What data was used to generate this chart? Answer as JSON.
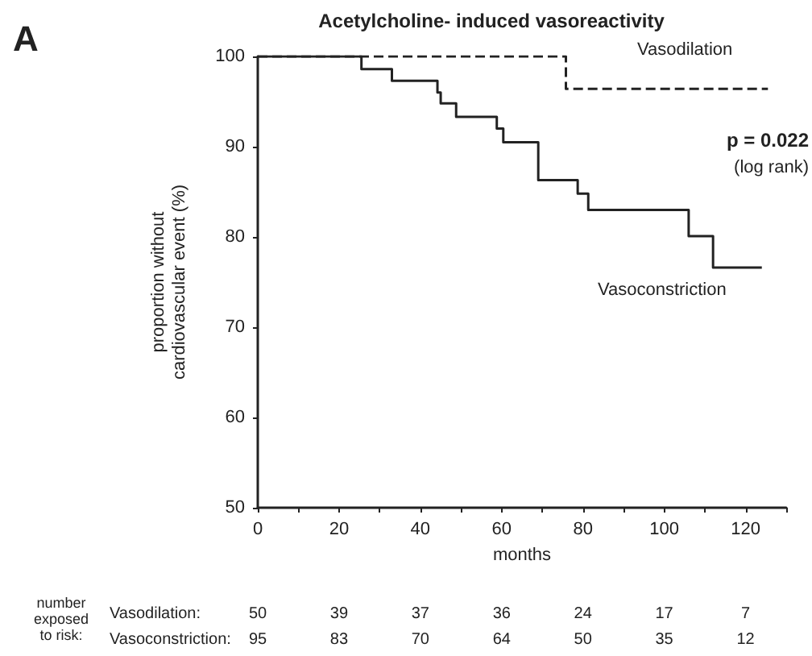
{
  "chart_data": {
    "type": "step",
    "title": "Acetylcholine- induced vasoreactivity",
    "xlabel": "months",
    "ylabel": "proportion without\ncardiovascular event (%)",
    "series": [
      {
        "name": "Vasodilation",
        "color": "#222222",
        "line_style": "dashed",
        "x": [
          0,
          75.8,
          125.5
        ],
        "values": [
          100,
          96.4,
          96.4
        ]
      },
      {
        "name": "Vasoconstriction",
        "color": "#222222",
        "line_style": "solid",
        "x": [
          0,
          25.5,
          33,
          44.2,
          45,
          48.8,
          58.8,
          60.4,
          69,
          78.7,
          81.3,
          106,
          112,
          124
        ],
        "values": [
          100,
          98.6,
          97.3,
          96,
          94.8,
          93.3,
          92,
          90.5,
          86.3,
          84.8,
          83,
          80.1,
          76.6,
          76.6
        ]
      }
    ],
    "xlim": [
      0,
      130
    ],
    "xticks": [
      0,
      {
        "value": 10,
        "label": null
      },
      20,
      {
        "value": 30,
        "label": null
      },
      40,
      {
        "value": 50,
        "label": null
      },
      60,
      {
        "value": 70,
        "label": null
      },
      80,
      {
        "value": 90,
        "label": null
      },
      100,
      {
        "value": 110,
        "label": null
      },
      120,
      {
        "value": 130,
        "label": null
      }
    ],
    "ylim": [
      50,
      100
    ],
    "yticks": [
      50,
      60,
      70,
      80,
      90,
      100
    ],
    "grid": false,
    "legend": false,
    "marker": "none",
    "annotations": [
      "A",
      "p = 0.022",
      "(log rank)",
      "number\nexposed\nto risk:",
      "Vasodilation:",
      "Vasoconstriction:",
      "50",
      "39",
      "37",
      "36",
      "24",
      "17",
      "7",
      "95",
      "83",
      "70",
      "64",
      "50",
      "35",
      "12"
    ]
  }
}
